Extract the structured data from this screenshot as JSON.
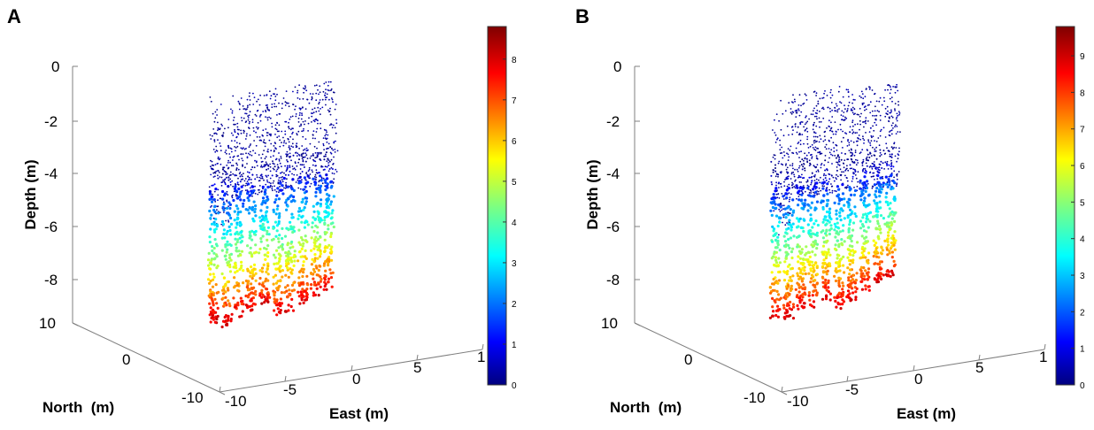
{
  "figure": {
    "panels": [
      "A",
      "B"
    ]
  },
  "colors": {
    "jet": [
      "#00007f",
      "#0000ff",
      "#007fff",
      "#00ffff",
      "#7fff7f",
      "#ffff00",
      "#ff7f00",
      "#ff0000",
      "#7f0000"
    ],
    "axis": "#7f7f7f"
  },
  "chart_data": [
    {
      "type": "scatter",
      "panel_label": "A",
      "title": "",
      "xlabel": "East (m)",
      "ylabel": "North  (m)",
      "zlabel": "Depth (m)",
      "x_ticks": [
        "-10",
        "-5",
        "0",
        "5",
        "1"
      ],
      "y_ticks": [
        "10",
        "0",
        "-10"
      ],
      "z_ticks": [
        "0",
        "-2",
        "-4",
        "-6",
        "-8"
      ],
      "xlim": [
        -10,
        10
      ],
      "ylim": [
        -10,
        10
      ],
      "zlim": [
        -10,
        0
      ],
      "colorbar": {
        "range": [
          0,
          8.8
        ],
        "ticks": [
          "8",
          "7",
          "6",
          "5",
          "4",
          "3",
          "2",
          "1",
          "0"
        ]
      },
      "columns": [
        {
          "east": -8.5,
          "north": 1.0,
          "depth_max": 9.6
        },
        {
          "east": -7.2,
          "north": 1.0,
          "depth_max": 9.8
        },
        {
          "east": -6.0,
          "north": 1.0,
          "depth_max": 9.5
        },
        {
          "east": -4.8,
          "north": 1.0,
          "depth_max": 9.4
        },
        {
          "east": -3.5,
          "north": 1.0,
          "depth_max": 9.2
        },
        {
          "east": -2.2,
          "north": 1.0,
          "depth_max": 9.7
        },
        {
          "east": -1.0,
          "north": 1.0,
          "depth_max": 9.6
        },
        {
          "east": 0.3,
          "north": 1.0,
          "depth_max": 9.3
        },
        {
          "east": 1.6,
          "north": 1.0,
          "depth_max": 9.1
        },
        {
          "east": 2.8,
          "north": 1.0,
          "depth_max": 9.0
        }
      ]
    },
    {
      "type": "scatter",
      "panel_label": "B",
      "title": "",
      "xlabel": "East (m)",
      "ylabel": "North  (m)",
      "zlabel": "Depth (m)",
      "x_ticks": [
        "-10",
        "-5",
        "0",
        "5",
        "1"
      ],
      "y_ticks": [
        "10",
        "0",
        "-10"
      ],
      "z_ticks": [
        "0",
        "-2",
        "-4",
        "-6",
        "-8"
      ],
      "xlim": [
        -10,
        10
      ],
      "ylim": [
        -10,
        10
      ],
      "zlim": [
        -10,
        0
      ],
      "colorbar": {
        "range": [
          0,
          9.8
        ],
        "ticks": [
          "9",
          "8",
          "7",
          "6",
          "5",
          "4",
          "3",
          "2",
          "1",
          "0"
        ]
      },
      "columns": [
        {
          "east": -8.5,
          "north": 1.0,
          "depth_max": 9.4
        },
        {
          "east": -7.2,
          "north": 1.0,
          "depth_max": 9.5
        },
        {
          "east": -6.0,
          "north": 1.0,
          "depth_max": 9.2
        },
        {
          "east": -4.8,
          "north": 1.0,
          "depth_max": 9.3
        },
        {
          "east": -3.5,
          "north": 1.0,
          "depth_max": 9.0
        },
        {
          "east": -2.2,
          "north": 1.0,
          "depth_max": 9.4
        },
        {
          "east": -1.0,
          "north": 1.0,
          "depth_max": 9.2
        },
        {
          "east": 0.3,
          "north": 1.0,
          "depth_max": 8.9
        },
        {
          "east": 1.6,
          "north": 1.0,
          "depth_max": 8.6
        },
        {
          "east": 2.8,
          "north": 1.0,
          "depth_max": 8.4
        }
      ]
    }
  ]
}
